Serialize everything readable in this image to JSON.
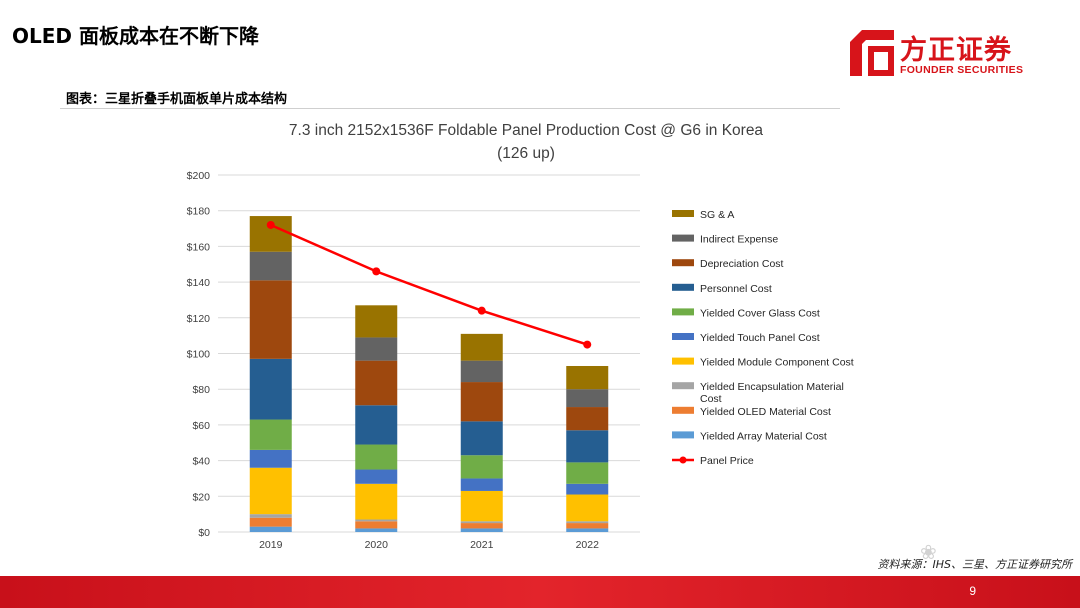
{
  "page": {
    "title": "OLED 面板成本在不断下降",
    "figure_caption": "图表：三星折叠手机面板单片成本结构",
    "source": "资料来源：IHS、三星、方正证券研究所",
    "page_number": "9",
    "watermark_icon": "wechat-watermark-icon"
  },
  "logo": {
    "name_cn": "方正证券",
    "name_en": "FOUNDER SECURITIES",
    "color": "#d7141a"
  },
  "chart_data": {
    "type": "bar",
    "stacked": true,
    "title": "7.3 inch 2152x1536F  Foldable Panel Production Cost @ G6  in Korea",
    "subtitle": "(126 up)",
    "categories": [
      "2019",
      "2020",
      "2021",
      "2022"
    ],
    "y_ticks": [
      "$0",
      "$20",
      "$40",
      "$60",
      "$80",
      "$100",
      "$120",
      "$140",
      "$160",
      "$180",
      "$200"
    ],
    "ylim": [
      0,
      200
    ],
    "grid": true,
    "legend_position": "right",
    "series": [
      {
        "name": "Yielded Array Material Cost",
        "color": "#5b9bd5",
        "values": [
          3,
          2,
          2,
          2
        ]
      },
      {
        "name": "Yielded OLED Material Cost",
        "color": "#ed7d31",
        "values": [
          5,
          4,
          3,
          3
        ]
      },
      {
        "name": "Yielded Encapsulation Material Cost",
        "color": "#a5a5a5",
        "values": [
          2,
          1,
          1,
          1
        ]
      },
      {
        "name": "Yielded Module Component Cost",
        "color": "#ffc000",
        "values": [
          26,
          20,
          17,
          15
        ]
      },
      {
        "name": "Yielded Touch Panel Cost",
        "color": "#4472c4",
        "values": [
          10,
          8,
          7,
          6
        ]
      },
      {
        "name": "Yielded Cover Glass Cost",
        "color": "#70ad47",
        "values": [
          17,
          14,
          13,
          12
        ]
      },
      {
        "name": "Personnel Cost",
        "color": "#255e91",
        "values": [
          34,
          22,
          19,
          18
        ]
      },
      {
        "name": "Depreciation Cost",
        "color": "#9e480e",
        "values": [
          44,
          25,
          22,
          13
        ]
      },
      {
        "name": "Indirect Expense",
        "color": "#636363",
        "values": [
          16,
          13,
          12,
          10
        ]
      },
      {
        "name": "SG & A",
        "color": "#997300",
        "values": [
          20,
          18,
          15,
          13
        ]
      }
    ],
    "legend": [
      {
        "label": "SG & A",
        "series_index": 9
      },
      {
        "label": "Indirect Expense",
        "series_index": 8
      },
      {
        "label": "Depreciation Cost",
        "series_index": 7
      },
      {
        "label": "Personnel Cost",
        "series_index": 6
      },
      {
        "label": "Yielded Cover Glass Cost",
        "series_index": 5
      },
      {
        "label": "Yielded Touch Panel Cost",
        "series_index": 4
      },
      {
        "label": "Yielded Module Component Cost",
        "series_index": 3
      },
      {
        "label": "Yielded Encapsulation Material Cost",
        "series_index": 2
      },
      {
        "label": "Yielded OLED Material Cost",
        "series_index": 1
      },
      {
        "label": "Yielded Array Material Cost",
        "series_index": 0
      },
      {
        "label": "Panel Price",
        "line": true
      }
    ],
    "line_series": {
      "name": "Panel Price",
      "color": "#ff0000",
      "values": [
        172,
        146,
        124,
        105
      ]
    }
  }
}
